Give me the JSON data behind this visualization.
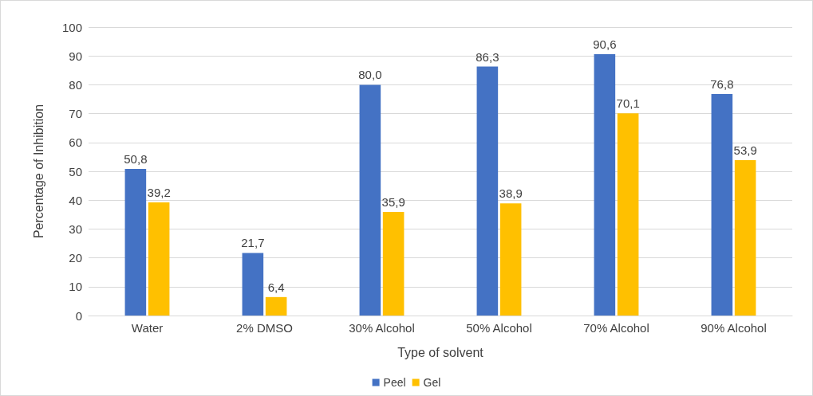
{
  "chart_data": {
    "type": "bar",
    "xlabel": "Type of solvent",
    "ylabel": "Percentage of Inhibition",
    "categories": [
      "Water",
      "2% DMSO",
      "30% Alcohol",
      "50% Alcohol",
      "70% Alcohol",
      "90% Alcohol"
    ],
    "series": [
      {
        "name": "Peel",
        "color": "#4472c4",
        "values": [
          50.8,
          21.7,
          80.0,
          86.3,
          90.6,
          76.8
        ],
        "value_labels": [
          "50,8",
          "21,7",
          "80,0",
          "86,3",
          "90,6",
          "76,8"
        ]
      },
      {
        "name": "Gel",
        "color": "#ffc000",
        "values": [
          39.2,
          6.4,
          35.9,
          38.9,
          70.1,
          53.9
        ],
        "value_labels": [
          "39,2",
          "6,4",
          "35,9",
          "38,9",
          "70,1",
          "53,9"
        ]
      }
    ],
    "ylim": [
      0,
      100
    ],
    "yticks": [
      0,
      10,
      20,
      30,
      40,
      50,
      60,
      70,
      80,
      90,
      100
    ],
    "grid": "y",
    "legend": "bottom"
  }
}
